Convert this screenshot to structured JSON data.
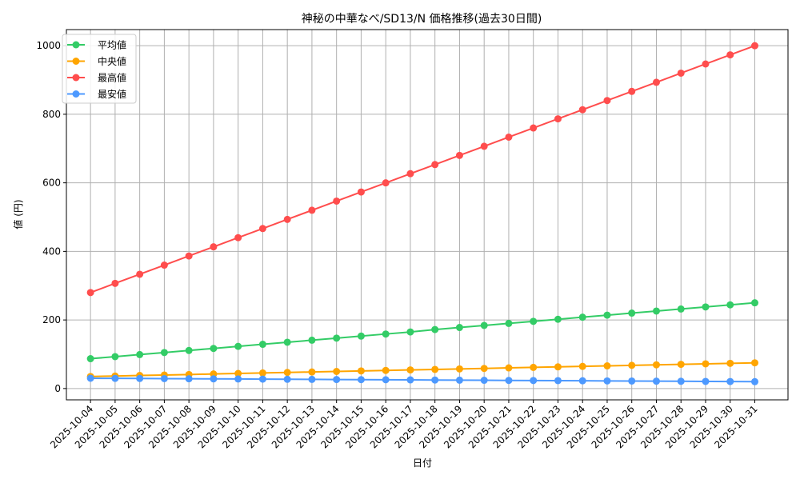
{
  "chart_data": {
    "type": "line",
    "title": "神秘の中華なべ/SD13/N 価格推移(過去30日間)",
    "xlabel": "日付",
    "ylabel": "値 (円)",
    "ylim": [
      -33,
      1047
    ],
    "yticks": [
      0,
      200,
      400,
      600,
      800,
      1000
    ],
    "grid": true,
    "legend": "top-left",
    "x": [
      "2025-10-04",
      "2025-10-05",
      "2025-10-06",
      "2025-10-07",
      "2025-10-08",
      "2025-10-09",
      "2025-10-10",
      "2025-10-11",
      "2025-10-12",
      "2025-10-13",
      "2025-10-14",
      "2025-10-15",
      "2025-10-16",
      "2025-10-17",
      "2025-10-18",
      "2025-10-19",
      "2025-10-20",
      "2025-10-21",
      "2025-10-22",
      "2025-10-23",
      "2025-10-24",
      "2025-10-25",
      "2025-10-26",
      "2025-10-27",
      "2025-10-28",
      "2025-10-29",
      "2025-10-30",
      "2025-10-31"
    ],
    "series": [
      {
        "name": "平均値",
        "color": "#33cc66",
        "values": [
          87,
          93,
          99,
          105,
          111,
          117,
          123,
          129,
          135,
          141,
          147,
          153,
          159,
          165,
          172,
          178,
          184,
          190,
          196,
          202,
          208,
          214,
          220,
          226,
          232,
          238,
          244,
          250
        ]
      },
      {
        "name": "中央値",
        "color": "#ffa500",
        "values": [
          35,
          36.5,
          38,
          39.4,
          40.9,
          42.4,
          43.9,
          45.4,
          46.9,
          48.3,
          49.8,
          51.3,
          52.8,
          54.3,
          55.7,
          57.2,
          58.7,
          60.2,
          61.7,
          63.1,
          64.6,
          66.1,
          67.6,
          69.1,
          70.6,
          72,
          73.5,
          75
        ]
      },
      {
        "name": "最高値",
        "color": "#ff4d4d",
        "values": [
          280,
          306.7,
          333.3,
          360,
          386.7,
          413.3,
          440,
          466.7,
          493.3,
          520,
          546.7,
          573.3,
          600,
          626.7,
          653.3,
          680,
          706.7,
          733.3,
          760,
          786.7,
          813.3,
          840,
          866.7,
          893.3,
          920,
          946.7,
          973.3,
          1000
        ]
      },
      {
        "name": "最安値",
        "color": "#4d99ff",
        "values": [
          30,
          29.6,
          29.3,
          28.9,
          28.5,
          28.1,
          27.8,
          27.4,
          27,
          26.7,
          26.3,
          25.9,
          25.6,
          25.2,
          24.8,
          24.4,
          24.1,
          23.7,
          23.3,
          23,
          22.6,
          22.2,
          21.9,
          21.5,
          21.1,
          20.7,
          20.4,
          20
        ]
      }
    ]
  }
}
